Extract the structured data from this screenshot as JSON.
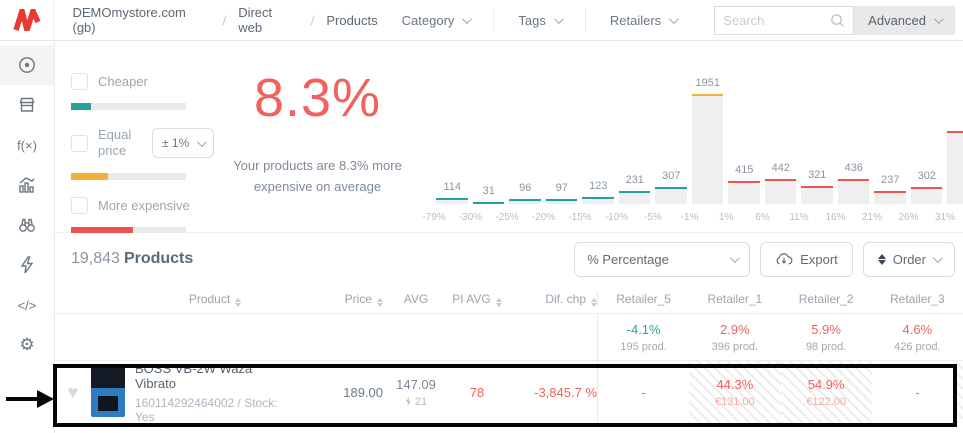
{
  "topbar": {
    "breadcrumb": [
      "DEMOmystore.com (gb)",
      "Direct web",
      "Products"
    ],
    "separator": "/",
    "dropdowns": [
      "Category",
      "Tags",
      "Retailers"
    ],
    "search_placeholder": "Search",
    "advanced_label": "Advanced"
  },
  "brand": {
    "logo_color": "#e63b35"
  },
  "sidebar": {
    "function_glyph": "f(×)",
    "code_glyph": "</>",
    "gear_glyph": "⚙"
  },
  "filters": {
    "cheaper": {
      "label": "Cheaper",
      "checked": false,
      "bar_color": "#21a497",
      "bar_fill": "17%"
    },
    "equal": {
      "label": "Equal price",
      "checked": false,
      "threshold": "± 1%",
      "bar_color": "#f2b237",
      "bar_fill": "32%"
    },
    "expensive": {
      "label": "More expensive",
      "checked": false,
      "bar_color": "#ee534f",
      "bar_fill": "54%"
    }
  },
  "stat": {
    "value": "8.3%",
    "color": "#f0625e",
    "caption": "Your products are 8.3% more expensive on average"
  },
  "chart_data": {
    "type": "bar",
    "title": "",
    "values": [
      114,
      31,
      96,
      97,
      123,
      231,
      307,
      1951,
      415,
      442,
      321,
      436,
      237,
      302
    ],
    "bar_top_colors": [
      "#21a497",
      "#21a497",
      "#21a497",
      "#21a497",
      "#21a497",
      "#21a497",
      "#21a497",
      "#f2b237",
      "#ee534f",
      "#ee534f",
      "#ee534f",
      "#ee534f",
      "#ee534f",
      "#ee534f"
    ],
    "x_edge_labels": [
      "-79%",
      "-30%",
      "-25%",
      "-20%",
      "-15%",
      "-10%",
      "-5%",
      "-1%",
      "1%",
      "6%",
      "11%",
      "16%",
      "21%",
      "26%",
      "31%"
    ],
    "cutoff_bar": {
      "visible": true,
      "approx_value": 1300,
      "top_color": "#ee534f"
    },
    "bar_fill_color": "#efefef",
    "ylim": [
      0,
      1951
    ],
    "grid": false,
    "legend": false
  },
  "toolbar": {
    "count": "19,843",
    "count_label": "Products",
    "percentage_select": "% Percentage",
    "export_label": "Export",
    "order_label": "Order"
  },
  "table": {
    "columns": {
      "product": "Product",
      "price": "Price",
      "avg": "AVG",
      "pi_avg": "PI AVG",
      "dif": "Dif. chp"
    },
    "retailers": [
      "Retailer_5",
      "Retailer_1",
      "Retailer_2",
      "Retailer_3"
    ],
    "summary": [
      {
        "pct": "-4.1%",
        "count": "195 prod.",
        "color": "#2aa79b"
      },
      {
        "pct": "2.9%",
        "count": "396 prod.",
        "color": "#ee615e"
      },
      {
        "pct": "5.9%",
        "count": "98 prod.",
        "color": "#ee615e"
      },
      {
        "pct": "4.6%",
        "count": "426 prod.",
        "color": "#ee615e"
      }
    ],
    "row": {
      "heart_glyph": "♥",
      "name": "BOSS VB-2W Waza Vibrato",
      "meta": "160114292464002 / Stock: Yes",
      "price": "189.00",
      "avg": "147.09",
      "avg_sub": "21",
      "pi_avg": "78",
      "dif": "-3,845.7 %",
      "cells": [
        {
          "dash": "-"
        },
        {
          "pct": "44.3%",
          "price": "€131.00",
          "hatched": true
        },
        {
          "pct": "54.9%",
          "price": "€122.00",
          "hatched": true
        },
        {
          "dash": "-"
        }
      ]
    }
  }
}
